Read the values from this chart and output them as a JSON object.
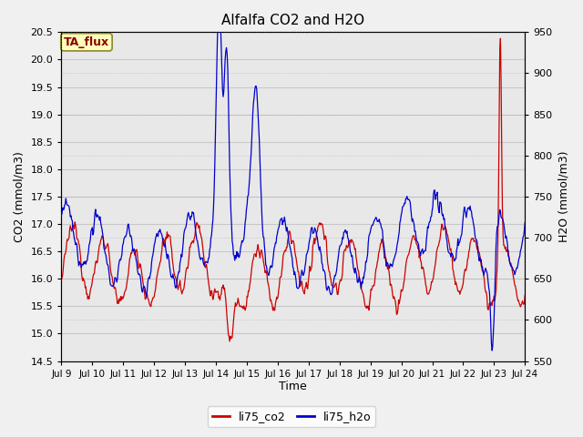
{
  "title": "Alfalfa CO2 and H2O",
  "xlabel": "Time",
  "ylabel_left": "CO2 (mmol/m3)",
  "ylabel_right": "H2O (mmol/m3)",
  "annotation": "TA_flux",
  "ylim_left": [
    14.5,
    20.5
  ],
  "ylim_right": [
    550,
    950
  ],
  "yticks_left": [
    14.5,
    15.0,
    15.5,
    16.0,
    16.5,
    17.0,
    17.5,
    18.0,
    18.5,
    19.0,
    19.5,
    20.0,
    20.5
  ],
  "yticks_right": [
    550,
    600,
    650,
    700,
    750,
    800,
    850,
    900,
    950
  ],
  "xtick_labels": [
    "Jul 9",
    "Jul 10",
    "Jul 11",
    "Jul 12",
    "Jul 13",
    "Jul 14",
    "Jul 15",
    "Jul 16",
    "Jul 17",
    "Jul 18",
    "Jul 19",
    "Jul 20",
    "Jul 21",
    "Jul 22",
    "Jul 23",
    "Jul 24"
  ],
  "legend_labels": [
    "li75_co2",
    "li75_h2o"
  ],
  "color_co2": "#cc0000",
  "color_h2o": "#0000cc",
  "fig_bg": "#f0f0f0",
  "plot_bg": "#e8e8e8",
  "figsize": [
    6.4,
    4.8
  ],
  "dpi": 100
}
